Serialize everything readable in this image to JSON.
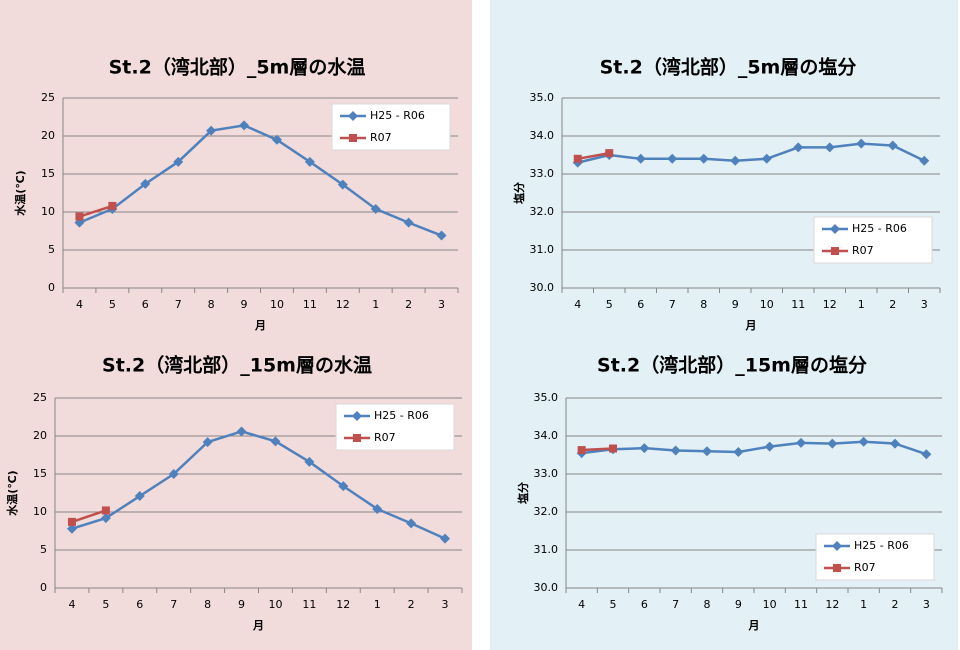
{
  "chart_data": [
    {
      "type": "line",
      "title": "St.2（湾北部）_5m層の水温",
      "ylabel": "水温(℃)",
      "xlabel": "月",
      "categories": [
        "4",
        "5",
        "6",
        "7",
        "8",
        "9",
        "10",
        "11",
        "12",
        "1",
        "2",
        "3"
      ],
      "ylim": [
        0,
        25
      ],
      "yticks": [
        0,
        5,
        10,
        15,
        20,
        25
      ],
      "grid": true,
      "legend": "top-right",
      "series": [
        {
          "name": "H25 - R06",
          "color": "#4f81bd",
          "marker": "diamond",
          "values": [
            8.6,
            10.4,
            13.7,
            16.6,
            20.7,
            21.4,
            19.5,
            16.6,
            13.6,
            10.4,
            8.6,
            6.9
          ]
        },
        {
          "name": "R07",
          "color": "#c0504d",
          "marker": "square",
          "values": [
            9.4,
            10.8,
            null,
            null,
            null,
            null,
            null,
            null,
            null,
            null,
            null,
            null
          ]
        }
      ]
    },
    {
      "type": "line",
      "title": "St.2（湾北部）_5m層の塩分",
      "ylabel": "塩分",
      "xlabel": "月",
      "categories": [
        "4",
        "5",
        "6",
        "7",
        "8",
        "9",
        "10",
        "11",
        "12",
        "1",
        "2",
        "3"
      ],
      "ylim": [
        30,
        35
      ],
      "yticks": [
        {
          "value": 30,
          "label": "30.0"
        },
        {
          "value": 31,
          "label": "31.0"
        },
        {
          "value": 32,
          "label": "32.0"
        },
        {
          "value": 33,
          "label": "33.0"
        },
        {
          "value": 34,
          "label": "34.0"
        },
        {
          "value": 35,
          "label": "35.0"
        }
      ],
      "grid": true,
      "legend": "center-right",
      "series": [
        {
          "name": "H25 - R06",
          "color": "#4f81bd",
          "marker": "diamond",
          "values": [
            33.3,
            33.5,
            33.4,
            33.4,
            33.4,
            33.35,
            33.4,
            33.7,
            33.7,
            33.8,
            33.75,
            33.35
          ]
        },
        {
          "name": "R07",
          "color": "#c0504d",
          "marker": "square",
          "values": [
            33.4,
            33.55,
            null,
            null,
            null,
            null,
            null,
            null,
            null,
            null,
            null,
            null
          ]
        }
      ]
    },
    {
      "type": "line",
      "title": "St.2（湾北部）_15m層の水温",
      "ylabel": "水温(℃)",
      "xlabel": "月",
      "categories": [
        "4",
        "5",
        "6",
        "7",
        "8",
        "9",
        "10",
        "11",
        "12",
        "1",
        "2",
        "3"
      ],
      "ylim": [
        0,
        25
      ],
      "yticks": [
        0,
        5,
        10,
        15,
        20,
        25
      ],
      "grid": true,
      "legend": "top-right",
      "series": [
        {
          "name": "H25 - R06",
          "color": "#4f81bd",
          "marker": "diamond",
          "values": [
            7.8,
            9.2,
            12.1,
            15.0,
            19.2,
            20.6,
            19.3,
            16.6,
            13.4,
            10.4,
            8.5,
            6.5
          ]
        },
        {
          "name": "R07",
          "color": "#c0504d",
          "marker": "square",
          "values": [
            8.7,
            10.2,
            null,
            null,
            null,
            null,
            null,
            null,
            null,
            null,
            null,
            null
          ]
        }
      ]
    },
    {
      "type": "line",
      "title": "St.2（湾北部）_15m層の塩分",
      "ylabel": "塩分",
      "xlabel": "月",
      "categories": [
        "4",
        "5",
        "6",
        "7",
        "8",
        "9",
        "10",
        "11",
        "12",
        "1",
        "2",
        "3"
      ],
      "ylim": [
        30,
        35
      ],
      "yticks": [
        {
          "value": 30,
          "label": "30.0"
        },
        {
          "value": 31,
          "label": "31.0"
        },
        {
          "value": 32,
          "label": "32.0"
        },
        {
          "value": 33,
          "label": "33.0"
        },
        {
          "value": 34,
          "label": "34.0"
        },
        {
          "value": 35,
          "label": "35.0"
        }
      ],
      "grid": true,
      "legend": "bottom-right",
      "series": [
        {
          "name": "H25 - R06",
          "color": "#4f81bd",
          "marker": "diamond",
          "values": [
            33.55,
            33.65,
            33.68,
            33.62,
            33.6,
            33.58,
            33.72,
            33.82,
            33.8,
            33.85,
            33.8,
            33.52
          ]
        },
        {
          "name": "R07",
          "color": "#c0504d",
          "marker": "square",
          "values": [
            33.63,
            33.67,
            null,
            null,
            null,
            null,
            null,
            null,
            null,
            null,
            null,
            null
          ]
        }
      ]
    }
  ]
}
